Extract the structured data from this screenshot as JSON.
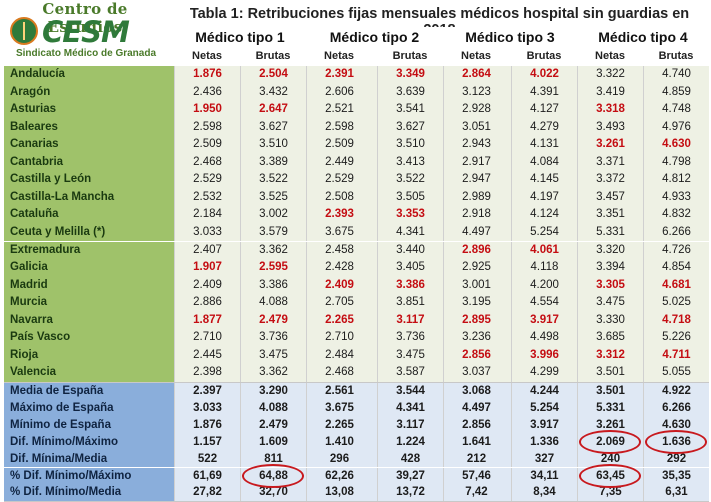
{
  "logo": {
    "top_text": "Centro de Estudios",
    "word": "CESM",
    "bottom_text": "Sindicato Médico de Granada"
  },
  "title": "Tabla 1: Retribuciones fijas mensuales médicos hospital sin guardias en 2018",
  "doctor_types": [
    "Médico tipo  1",
    "Médico tipo  2",
    "Médico tipo  3",
    "Médico tipo  4"
  ],
  "sub_headers": [
    "Netas",
    "Brutas"
  ],
  "colors": {
    "region_bg": "#9fc26a",
    "summary_bg": "#8aaedb",
    "highlight": "#c40d12",
    "circle": "#c8191e"
  },
  "regions": [
    {
      "name": "Andalucía",
      "values": [
        "1.876",
        "2.504",
        "2.391",
        "3.349",
        "2.864",
        "4.022",
        "3.322",
        "4.740"
      ],
      "red": [
        0,
        1,
        2,
        3,
        4,
        5
      ]
    },
    {
      "name": "Aragón",
      "values": [
        "2.436",
        "3.432",
        "2.606",
        "3.639",
        "3.123",
        "4.391",
        "3.419",
        "4.859"
      ],
      "red": []
    },
    {
      "name": "Asturias",
      "values": [
        "1.950",
        "2.647",
        "2.521",
        "3.541",
        "2.928",
        "4.127",
        "3.318",
        "4.748"
      ],
      "red": [
        0,
        1,
        6
      ]
    },
    {
      "name": "Baleares",
      "values": [
        "2.598",
        "3.627",
        "2.598",
        "3.627",
        "3.051",
        "4.279",
        "3.493",
        "4.976"
      ],
      "red": []
    },
    {
      "name": "Canarias",
      "values": [
        "2.509",
        "3.510",
        "2.509",
        "3.510",
        "2.943",
        "4.131",
        "3.261",
        "4.630"
      ],
      "red": [
        6,
        7
      ]
    },
    {
      "name": "Cantabria",
      "values": [
        "2.468",
        "3.389",
        "2.449",
        "3.413",
        "2.917",
        "4.084",
        "3.371",
        "4.798"
      ],
      "red": []
    },
    {
      "name": "Castilla y León",
      "values": [
        "2.529",
        "3.522",
        "2.529",
        "3.522",
        "2.947",
        "4.145",
        "3.372",
        "4.812"
      ],
      "red": []
    },
    {
      "name": "Castilla-La Mancha",
      "values": [
        "2.532",
        "3.525",
        "2.508",
        "3.505",
        "2.989",
        "4.197",
        "3.457",
        "4.933"
      ],
      "red": []
    },
    {
      "name": "Cataluña",
      "values": [
        "2.184",
        "3.002",
        "2.393",
        "3.353",
        "2.918",
        "4.124",
        "3.351",
        "4.832"
      ],
      "red": [
        2,
        3
      ]
    },
    {
      "name": "Ceuta y Melilla (*)",
      "values": [
        "3.033",
        "3.579",
        "3.675",
        "4.341",
        "4.497",
        "5.254",
        "5.331",
        "6.266"
      ],
      "red": []
    },
    {
      "name": "Extremadura",
      "values": [
        "2.407",
        "3.362",
        "2.458",
        "3.440",
        "2.896",
        "4.061",
        "3.320",
        "4.726"
      ],
      "red": [
        4,
        5
      ]
    },
    {
      "name": "Galicia",
      "values": [
        "1.907",
        "2.595",
        "2.428",
        "3.405",
        "2.925",
        "4.118",
        "3.394",
        "4.854"
      ],
      "red": [
        0,
        1
      ]
    },
    {
      "name": "Madrid",
      "values": [
        "2.409",
        "3.386",
        "2.409",
        "3.386",
        "3.001",
        "4.200",
        "3.305",
        "4.681"
      ],
      "red": [
        2,
        3,
        6,
        7
      ]
    },
    {
      "name": "Murcia",
      "values": [
        "2.886",
        "4.088",
        "2.705",
        "3.851",
        "3.195",
        "4.554",
        "3.475",
        "5.025"
      ],
      "red": []
    },
    {
      "name": "Navarra",
      "values": [
        "1.877",
        "2.479",
        "2.265",
        "3.117",
        "2.895",
        "3.917",
        "3.330",
        "4.718"
      ],
      "red": [
        0,
        1,
        2,
        3,
        4,
        5,
        7
      ]
    },
    {
      "name": "País Vasco",
      "values": [
        "2.710",
        "3.736",
        "2.710",
        "3.736",
        "3.236",
        "4.498",
        "3.685",
        "5.226"
      ],
      "red": []
    },
    {
      "name": "Rioja",
      "values": [
        "2.445",
        "3.475",
        "2.484",
        "3.475",
        "2.856",
        "3.996",
        "3.312",
        "4.711"
      ],
      "red": [
        4,
        5,
        6,
        7
      ]
    },
    {
      "name": "Valencia",
      "values": [
        "2.398",
        "3.362",
        "2.468",
        "3.587",
        "3.037",
        "4.299",
        "3.501",
        "5.055"
      ],
      "red": []
    }
  ],
  "summary": [
    {
      "name": "Media de España",
      "values": [
        "2.397",
        "3.290",
        "2.561",
        "3.544",
        "3.068",
        "4.244",
        "3.501",
        "4.922"
      ]
    },
    {
      "name": "Máximo de España",
      "values": [
        "3.033",
        "4.088",
        "3.675",
        "4.341",
        "4.497",
        "5.254",
        "5.331",
        "6.266"
      ]
    },
    {
      "name": "Mínimo de España",
      "values": [
        "1.876",
        "2.479",
        "2.265",
        "3.117",
        "2.856",
        "3.917",
        "3.261",
        "4.630"
      ]
    },
    {
      "name": "Dif. Mínimo/Máximo",
      "values": [
        "1.157",
        "1.609",
        "1.410",
        "1.224",
        "1.641",
        "1.336",
        "2.069",
        "1.636"
      ]
    },
    {
      "name": "Dif. Mínima/Media",
      "values": [
        "522",
        "811",
        "296",
        "428",
        "212",
        "327",
        "240",
        "292"
      ]
    },
    {
      "name": "% Dif. Mínimo/Máximo",
      "values": [
        "61,69",
        "64,88",
        "62,26",
        "39,27",
        "57,46",
        "34,11",
        "63,45",
        "35,35"
      ]
    },
    {
      "name": "% Dif. Mínimo/Media",
      "values": [
        "27,82",
        "32,70",
        "13,08",
        "13,72",
        "7,42",
        "8,34",
        "7,35",
        "6,31"
      ]
    }
  ]
}
